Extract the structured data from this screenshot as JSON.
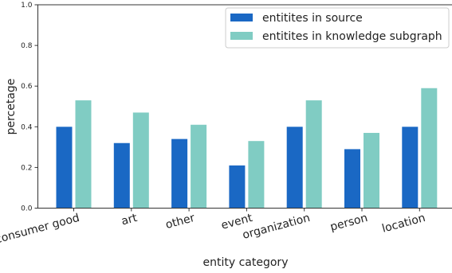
{
  "chart_data": {
    "type": "bar",
    "xlabel": "entity category",
    "ylabel": "percetage",
    "ylim": [
      0,
      1.0
    ],
    "yticks": [
      "0.0",
      "0.2",
      "0.4",
      "0.6",
      "0.8",
      "1.0"
    ],
    "categories": [
      "consumer good",
      "art",
      "other",
      "event",
      "organization",
      "person",
      "location"
    ],
    "series": [
      {
        "name": "entitites in source",
        "color": "#1a68c4",
        "values": [
          0.4,
          0.32,
          0.34,
          0.21,
          0.4,
          0.29,
          0.4
        ]
      },
      {
        "name": "entitites in knowledge subgraph",
        "color": "#80ccc3",
        "values": [
          0.53,
          0.47,
          0.41,
          0.33,
          0.53,
          0.37,
          0.59
        ]
      }
    ],
    "legend_position": "top-right",
    "grid": false
  }
}
